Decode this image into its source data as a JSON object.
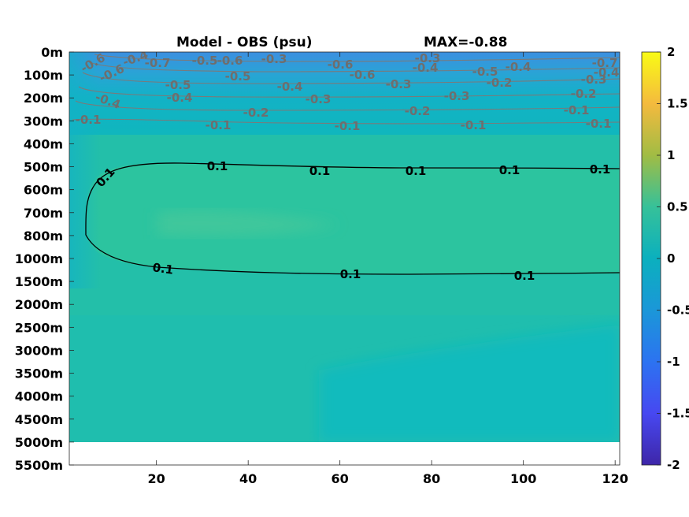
{
  "chart_data": {
    "type": "heatmap",
    "title_left": "Model - OBS (psu)",
    "title_right": "MAX=-0.88",
    "xlabel": "",
    "ylabel": "",
    "xlim": [
      1,
      121
    ],
    "x_ticks": [
      20,
      40,
      60,
      80,
      100,
      120
    ],
    "y_tick_labels": [
      "0m",
      "100m",
      "200m",
      "300m",
      "400m",
      "500m",
      "600m",
      "700m",
      "800m",
      "1000m",
      "1500m",
      "2000m",
      "2500m",
      "3000m",
      "3500m",
      "4000m",
      "4500m",
      "5000m",
      "5500m"
    ],
    "data_bottom_depth_label": "5000m",
    "colorbar": {
      "colormap": "parula",
      "range": [
        -2,
        2
      ],
      "tick_labels": [
        "2",
        "1.5",
        "1",
        "0.5",
        "0",
        "-0.5",
        "-1",
        "-1.5",
        "-2"
      ]
    },
    "colors": {
      "deep_low": "#00b8c0",
      "mid_high": "#2cc4a0",
      "bg_field": "#23bfa9",
      "surface_min": "#3c8fe0",
      "no_data": "#ffffff"
    },
    "contours": {
      "gray_labels": [
        "-0.6",
        "-0.4",
        "-0.7",
        "-0.5",
        "-0.6",
        "-0.3",
        "-0.3",
        "-0.7",
        "-0.6",
        "-0.5",
        "-0.6",
        "-0.6",
        "-0.4",
        "-0.5",
        "-0.4",
        "-0.4",
        "-0.5",
        "-0.4",
        "-0.3",
        "-0.2",
        "-0.3",
        "-0.4",
        "-0.4",
        "-0.3",
        "-0.3",
        "-0.2",
        "-0.2",
        "-0.2",
        "-0.1",
        "-0.1",
        "-0.1",
        "-0.1",
        "-0.1",
        "-0.1"
      ],
      "black_labels": [
        "0.1",
        "0.1",
        "0.1",
        "0.1",
        "0.1",
        "0.1",
        "0.1",
        "0.1",
        "0.1",
        "0.1"
      ]
    }
  }
}
